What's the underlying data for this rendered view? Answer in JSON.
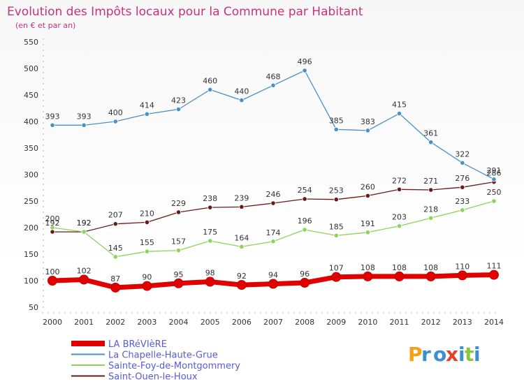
{
  "title": "Evolution des Impôts locaux pour la Commune par Habitant",
  "subtitle": "(en € et par an)",
  "brand": {
    "p": "P",
    "r": "r",
    "o": "o",
    "x": "x",
    "i": "i",
    "t": "t",
    "i2": "i"
  },
  "chart_data": {
    "type": "line",
    "title": "Evolution des Impôts locaux pour la Commune par Habitant",
    "subtitle": "(en € et par an)",
    "xlabel": "",
    "ylabel": "",
    "ylim": [
      50,
      550
    ],
    "yticks": [
      50,
      100,
      150,
      200,
      250,
      300,
      350,
      400,
      450,
      500,
      550
    ],
    "categories": [
      "2000",
      "2001",
      "2002",
      "2003",
      "2004",
      "2005",
      "2006",
      "2007",
      "2008",
      "2009",
      "2010",
      "2011",
      "2012",
      "2013",
      "2014"
    ],
    "grid": false,
    "legend_position": "bottom-left",
    "series": [
      {
        "name": "LA BRéVIèRE",
        "color": "#e00000",
        "values": [
          100,
          102,
          87,
          90,
          95,
          98,
          92,
          94,
          96,
          107,
          108,
          108,
          108,
          110,
          111
        ]
      },
      {
        "name": "La Chapelle-Haute-Grue",
        "color": "#4a90c8",
        "values": [
          393,
          393,
          400,
          414,
          423,
          460,
          440,
          468,
          496,
          385,
          383,
          415,
          361,
          322,
          291
        ]
      },
      {
        "name": "Sainte-Foy-de-Montgommery",
        "color": "#8fd35a",
        "values": [
          200,
          192,
          145,
          155,
          157,
          175,
          164,
          174,
          196,
          185,
          191,
          203,
          218,
          233,
          250
        ]
      },
      {
        "name": "Saint-Ouen-le-Houx",
        "color": "#6b1a1a",
        "values": [
          192,
          192,
          207,
          210,
          229,
          238,
          239,
          246,
          254,
          253,
          260,
          272,
          271,
          276,
          286
        ]
      }
    ]
  }
}
